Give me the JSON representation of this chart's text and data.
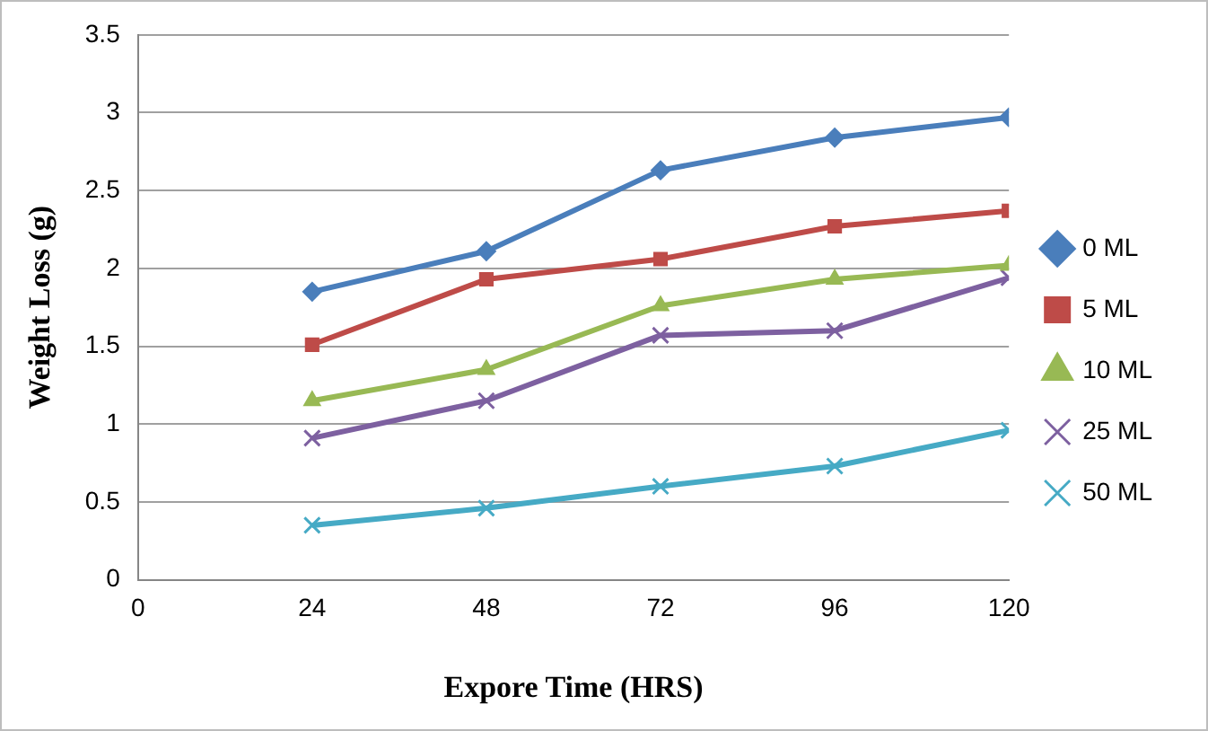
{
  "chart_data": {
    "type": "line",
    "xlabel": "Expore Time (HRS)",
    "ylabel": "Weight Loss (g)",
    "x": [
      24,
      48,
      72,
      96,
      120
    ],
    "xlim": [
      0,
      120
    ],
    "xticks": [
      0,
      24,
      48,
      72,
      96,
      120
    ],
    "ylim": [
      0,
      3.5
    ],
    "yticks": [
      0,
      0.5,
      1,
      1.5,
      2,
      2.5,
      3,
      3.5
    ],
    "grid": "y",
    "legend": "right",
    "line_style": "solid",
    "series": [
      {
        "name": "0 ML",
        "color": "#4a7ebb",
        "marker": "diamond",
        "values": [
          1.85,
          2.11,
          2.63,
          2.84,
          2.97
        ]
      },
      {
        "name": "5 ML",
        "color": "#be4b48",
        "marker": "square",
        "values": [
          1.51,
          1.93,
          2.06,
          2.27,
          2.37
        ]
      },
      {
        "name": "10 ML",
        "color": "#98b954",
        "marker": "triangle",
        "values": [
          1.15,
          1.35,
          1.76,
          1.93,
          2.02
        ]
      },
      {
        "name": "25 ML",
        "color": "#7d60a0",
        "marker": "cross",
        "values": [
          0.91,
          1.15,
          1.57,
          1.6,
          1.94
        ]
      },
      {
        "name": "50 ML",
        "color": "#46aac5",
        "marker": "cross",
        "values": [
          0.35,
          0.46,
          0.6,
          0.73,
          0.96
        ]
      }
    ]
  }
}
